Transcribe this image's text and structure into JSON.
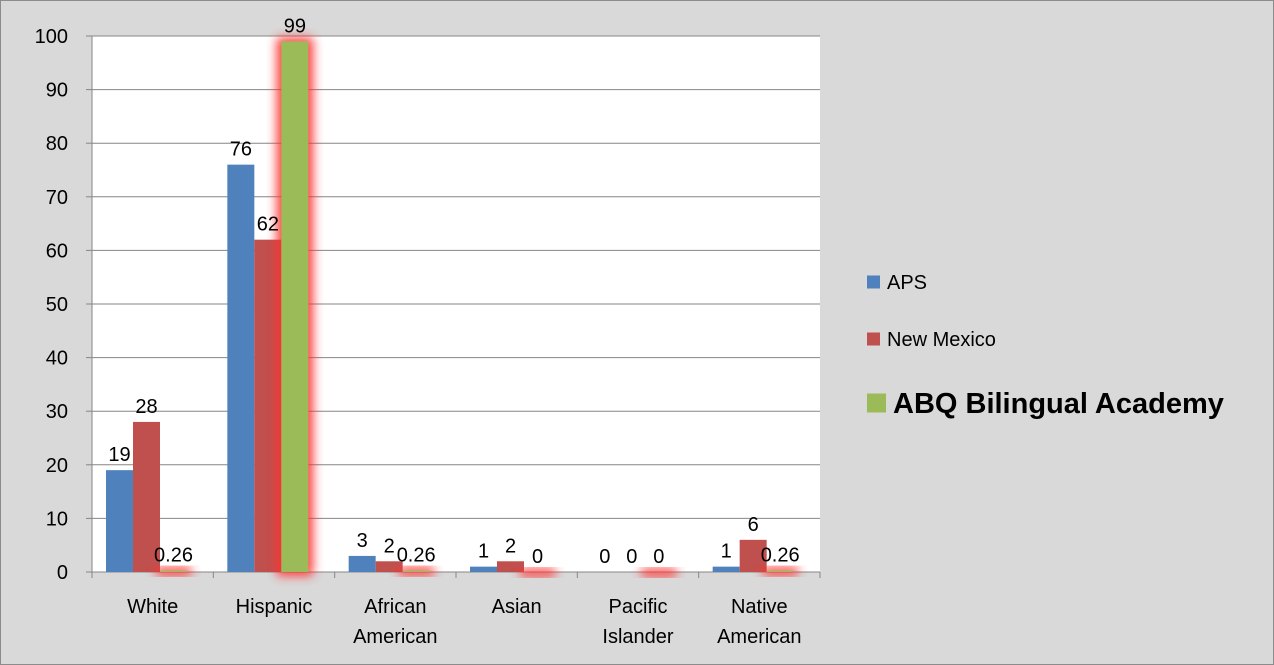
{
  "chart_data": {
    "type": "bar",
    "categories": [
      [
        "White"
      ],
      [
        "Hispanic"
      ],
      [
        "African",
        "American"
      ],
      [
        "Asian"
      ],
      [
        "Pacific",
        "Islander"
      ],
      [
        "Native",
        "American"
      ]
    ],
    "series": [
      {
        "name": "APS",
        "color": "#4f81bd",
        "values": [
          19,
          76,
          3,
          1,
          0,
          1
        ],
        "labels": [
          "19",
          "76",
          "3",
          "1",
          "0",
          "1"
        ],
        "highlight": false
      },
      {
        "name": "New Mexico",
        "color": "#c0504d",
        "values": [
          28,
          62,
          2,
          2,
          0,
          6
        ],
        "labels": [
          "28",
          "62",
          "2",
          "2",
          "0",
          "6"
        ],
        "highlight": false
      },
      {
        "name": "ABQ Bilingual Academy",
        "color": "#9bbb59",
        "values": [
          0.26,
          99,
          0.26,
          0,
          0,
          0.26
        ],
        "labels": [
          "0.26",
          "99",
          "0.26",
          "0",
          "0",
          "0.26"
        ],
        "highlight": true
      }
    ],
    "ylim": [
      0,
      100
    ],
    "yticks": [
      0,
      10,
      20,
      30,
      40,
      50,
      60,
      70,
      80,
      90,
      100
    ],
    "grid": true,
    "legend": "right",
    "legend_emphasis": "ABQ Bilingual Academy",
    "glow_color": "#ff3030"
  }
}
